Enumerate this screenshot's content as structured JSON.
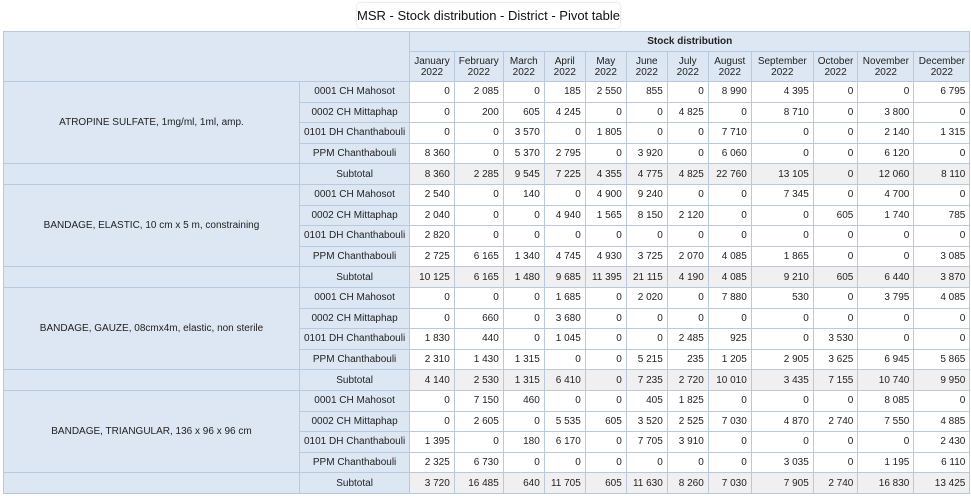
{
  "title": "MSR - Stock distribution - District - Pivot table",
  "header": "Stock distribution",
  "months": [
    [
      "January",
      "2022"
    ],
    [
      "February",
      "2022"
    ],
    [
      "March",
      "2022"
    ],
    [
      "April",
      "2022"
    ],
    [
      "May",
      "2022"
    ],
    [
      "June",
      "2022"
    ],
    [
      "July",
      "2022"
    ],
    [
      "August",
      "2022"
    ],
    [
      "September",
      "2022"
    ],
    [
      "October",
      "2022"
    ],
    [
      "November",
      "2022"
    ],
    [
      "December",
      "2022"
    ]
  ],
  "subtotal_label": "Subtotal",
  "groups": [
    {
      "item": "ATROPINE SULFATE, 1mg/ml, 1ml, amp.",
      "rows": [
        {
          "org": "0001 CH Mahosot",
          "values": [
            "0",
            "2 085",
            "0",
            "185",
            "2 550",
            "855",
            "0",
            "8 990",
            "4 395",
            "0",
            "0",
            "6 795"
          ]
        },
        {
          "org": "0002 CH Mittaphap",
          "values": [
            "0",
            "200",
            "605",
            "4 245",
            "0",
            "0",
            "4 825",
            "0",
            "8 710",
            "0",
            "3 800",
            "0"
          ]
        },
        {
          "org": "0101 DH Chanthabouli",
          "values": [
            "0",
            "0",
            "3 570",
            "0",
            "1 805",
            "0",
            "0",
            "7 710",
            "0",
            "0",
            "2 140",
            "1 315"
          ]
        },
        {
          "org": "PPM Chanthabouli",
          "values": [
            "8 360",
            "0",
            "5 370",
            "2 795",
            "0",
            "3 920",
            "0",
            "6 060",
            "0",
            "0",
            "6 120",
            "0"
          ]
        }
      ],
      "subtotal": [
        "8 360",
        "2 285",
        "9 545",
        "7 225",
        "4 355",
        "4 775",
        "4 825",
        "22 760",
        "13 105",
        "0",
        "12 060",
        "8 110"
      ]
    },
    {
      "item": "BANDAGE, ELASTIC, 10 cm x 5 m, constraining",
      "rows": [
        {
          "org": "0001 CH Mahosot",
          "values": [
            "2 540",
            "0",
            "140",
            "0",
            "4 900",
            "9 240",
            "0",
            "0",
            "7 345",
            "0",
            "4 700",
            "0"
          ]
        },
        {
          "org": "0002 CH Mittaphap",
          "values": [
            "2 040",
            "0",
            "0",
            "4 940",
            "1 565",
            "8 150",
            "2 120",
            "0",
            "0",
            "605",
            "1 740",
            "785"
          ]
        },
        {
          "org": "0101 DH Chanthabouli",
          "values": [
            "2 820",
            "0",
            "0",
            "0",
            "0",
            "0",
            "0",
            "0",
            "0",
            "0",
            "0",
            "0"
          ]
        },
        {
          "org": "PPM Chanthabouli",
          "values": [
            "2 725",
            "6 165",
            "1 340",
            "4 745",
            "4 930",
            "3 725",
            "2 070",
            "4 085",
            "1 865",
            "0",
            "0",
            "3 085"
          ]
        }
      ],
      "subtotal": [
        "10 125",
        "6 165",
        "1 480",
        "9 685",
        "11 395",
        "21 115",
        "4 190",
        "4 085",
        "9 210",
        "605",
        "6 440",
        "3 870"
      ]
    },
    {
      "item": "BANDAGE, GAUZE, 08cmx4m, elastic, non sterile",
      "rows": [
        {
          "org": "0001 CH Mahosot",
          "values": [
            "0",
            "0",
            "0",
            "1 685",
            "0",
            "2 020",
            "0",
            "7 880",
            "530",
            "0",
            "3 795",
            "4 085"
          ]
        },
        {
          "org": "0002 CH Mittaphap",
          "values": [
            "0",
            "660",
            "0",
            "3 680",
            "0",
            "0",
            "0",
            "0",
            "0",
            "0",
            "0",
            "0"
          ]
        },
        {
          "org": "0101 DH Chanthabouli",
          "values": [
            "1 830",
            "440",
            "0",
            "1 045",
            "0",
            "0",
            "2 485",
            "925",
            "0",
            "3 530",
            "0",
            "0"
          ]
        },
        {
          "org": "PPM Chanthabouli",
          "values": [
            "2 310",
            "1 430",
            "1 315",
            "0",
            "0",
            "5 215",
            "235",
            "1 205",
            "2 905",
            "3 625",
            "6 945",
            "5 865"
          ]
        }
      ],
      "subtotal": [
        "4 140",
        "2 530",
        "1 315",
        "6 410",
        "0",
        "7 235",
        "2 720",
        "10 010",
        "3 435",
        "7 155",
        "10 740",
        "9 950"
      ]
    },
    {
      "item": "BANDAGE, TRIANGULAR, 136 x 96 x 96 cm",
      "rows": [
        {
          "org": "0001 CH Mahosot",
          "values": [
            "0",
            "7 150",
            "460",
            "0",
            "0",
            "405",
            "1 825",
            "0",
            "0",
            "0",
            "8 085",
            "0"
          ]
        },
        {
          "org": "0002 CH Mittaphap",
          "values": [
            "0",
            "2 605",
            "0",
            "5 535",
            "605",
            "3 520",
            "2 525",
            "7 030",
            "4 870",
            "2 740",
            "7 550",
            "4 885"
          ]
        },
        {
          "org": "0101 DH Chanthabouli",
          "values": [
            "1 395",
            "0",
            "180",
            "6 170",
            "0",
            "7 705",
            "3 910",
            "0",
            "0",
            "0",
            "0",
            "2 430"
          ]
        },
        {
          "org": "PPM Chanthabouli",
          "values": [
            "2 325",
            "6 730",
            "0",
            "0",
            "0",
            "0",
            "0",
            "0",
            "3 035",
            "0",
            "1 195",
            "6 110"
          ]
        }
      ],
      "subtotal": [
        "3 720",
        "16 485",
        "640",
        "11 705",
        "605",
        "11 630",
        "8 260",
        "7 030",
        "7 905",
        "2 740",
        "16 830",
        "13 425"
      ]
    }
  ]
}
